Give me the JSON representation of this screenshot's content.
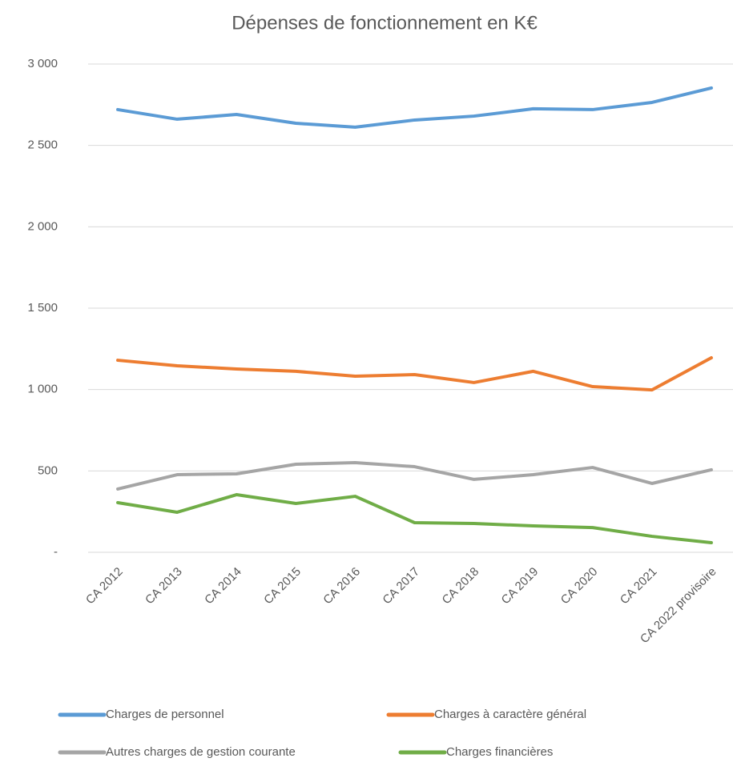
{
  "chart_data": {
    "type": "line",
    "title": "Dépenses de fonctionnement en K€",
    "categories": [
      "CA 2012",
      "CA 2013",
      "CA 2014",
      "CA 2015",
      "CA 2016",
      "CA 2017",
      "CA 2018",
      "CA 2019",
      "CA 2020",
      "CA 2021",
      "CA 2022 provisoire"
    ],
    "series": [
      {
        "name": "Charges de personnel",
        "color": "#5b9bd5",
        "values": [
          2720,
          2661,
          2690,
          2636,
          2612,
          2656,
          2680,
          2725,
          2720,
          2764,
          2853
        ]
      },
      {
        "name": "Charges à caractère général",
        "color": "#ed7d31",
        "values": [
          1180,
          1146,
          1126,
          1112,
          1082,
          1092,
          1043,
          1112,
          1018,
          998,
          1195
        ]
      },
      {
        "name": "Autres charges de gestion courante",
        "color": "#a5a5a5",
        "values": [
          389,
          477,
          482,
          541,
          551,
          526,
          448,
          477,
          521,
          423,
          507
        ]
      },
      {
        "name": "Charges financières",
        "color": "#70ad47",
        "values": [
          305,
          246,
          354,
          300,
          344,
          182,
          177,
          162,
          152,
          98,
          59
        ]
      }
    ],
    "ylim": [
      0,
      3000
    ],
    "yticks": [
      {
        "value": 0,
        "label": "-"
      },
      500,
      {
        "value": 1000,
        "label": "1 000"
      },
      {
        "value": 1500,
        "label": "1 500"
      },
      {
        "value": 2000,
        "label": "2 000"
      },
      {
        "value": 2500,
        "label": "2 500"
      },
      {
        "value": 3000,
        "label": "3 000"
      }
    ],
    "grid": true,
    "legend": "bottom"
  }
}
